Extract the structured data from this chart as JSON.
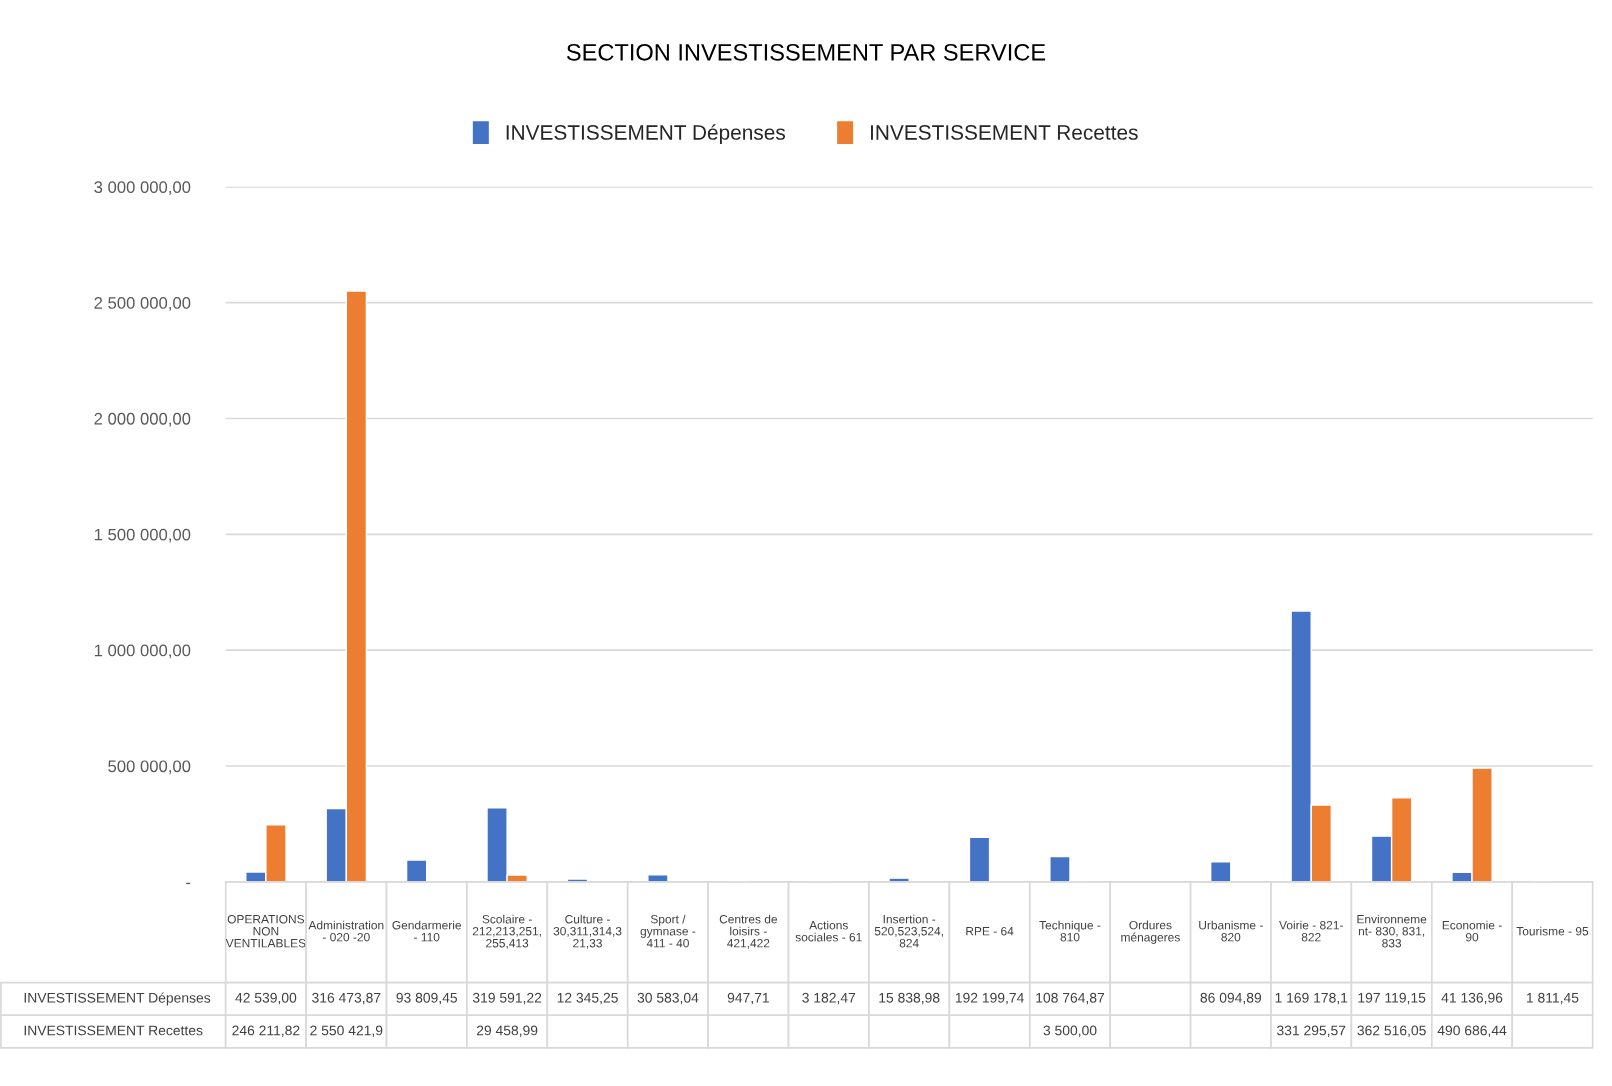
{
  "chart_data": {
    "type": "bar",
    "title": "SECTION INVESTISSEMENT PAR SERVICE",
    "categories": [
      "OPERATIONS\nNON\nVENTILABLES",
      "Administration\n- 020 -20",
      "Gendarmerie\n- 110",
      "Scolaire -\n212,213,251,\n255,413",
      "Culture -\n30,311,314,3\n21,33",
      "Sport /\ngymnase -\n411 - 40",
      "Centres de\nloisirs -\n421,422",
      "Actions\nsociales - 61",
      "Insertion -\n520,523,524,\n824",
      "RPE - 64",
      "Technique -\n810",
      "Ordures\nménageres",
      "Urbanisme -\n820",
      "Voirie - 821-\n822",
      "Environneme\nnt- 830, 831,\n833",
      "Economie -\n90",
      "Tourisme - 95"
    ],
    "series": [
      {
        "name": "INVESTISSEMENT Dépenses",
        "color": "#4472c4",
        "values": [
          42539.0,
          316473.87,
          93809.45,
          319591.22,
          12345.25,
          30583.04,
          947.71,
          3182.47,
          15838.98,
          192199.74,
          108764.87,
          null,
          86094.89,
          1169178.1,
          197119.15,
          41136.96,
          1811.45
        ],
        "value_labels": [
          "42 539,00",
          "316 473,87",
          "93 809,45",
          "319 591,22",
          "12 345,25",
          "30 583,04",
          "947,71",
          "3 182,47",
          "15 838,98",
          "192 199,74",
          "108 764,87",
          null,
          "86 094,89",
          "1 169 178,1",
          "197 119,15",
          "41 136,96",
          "1 811,45"
        ]
      },
      {
        "name": "INVESTISSEMENT Recettes",
        "color": "#ed7d31",
        "values": [
          246211.82,
          2550421.9,
          null,
          29458.99,
          null,
          null,
          null,
          null,
          null,
          null,
          3500.0,
          null,
          null,
          331295.57,
          362516.05,
          490686.44,
          null
        ],
        "value_labels": [
          "246 211,82",
          "2 550 421,9",
          null,
          "29 458,99",
          null,
          null,
          null,
          null,
          null,
          null,
          "3 500,00",
          null,
          null,
          "331 295,57",
          "362 516,05",
          "490 686,44",
          null
        ]
      }
    ],
    "ylim": [
      0,
      3000000
    ],
    "yticks": [
      {
        "value": 0,
        "label": "-"
      },
      {
        "value": 500000,
        "label": "500 000,00"
      },
      {
        "value": 1000000,
        "label": "1 000 000,00"
      },
      {
        "value": 1500000,
        "label": "1 500 000,00"
      },
      {
        "value": 2000000,
        "label": "2 000 000,00"
      },
      {
        "value": 2500000,
        "label": "2 500 000,00"
      },
      {
        "value": 3000000,
        "label": "3 000 000,00"
      }
    ],
    "grid": "y",
    "legend": "top"
  }
}
